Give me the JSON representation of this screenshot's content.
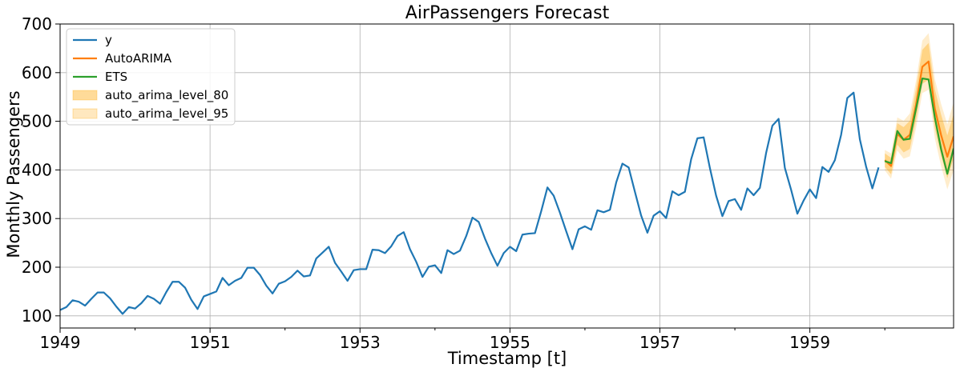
{
  "chart_data": {
    "type": "line",
    "title": "AirPassengers Forecast",
    "xlabel": "Timestamp [t]",
    "ylabel": "Monthly Passengers",
    "xlim": [
      1949.0,
      1960.917
    ],
    "ylim": [
      75,
      700
    ],
    "x_ticks": [
      1949,
      1951,
      1953,
      1955,
      1957,
      1959
    ],
    "x_minor_ticks": [
      1950,
      1952,
      1954,
      1956,
      1958,
      1960
    ],
    "x_tick_labels": [
      "1949",
      "1951",
      "1953",
      "1955",
      "1957",
      "1959"
    ],
    "y_ticks": [
      100,
      200,
      300,
      400,
      500,
      600,
      700
    ],
    "y_tick_labels": [
      "100",
      "200",
      "300",
      "400",
      "500",
      "600",
      "700"
    ],
    "grid": true,
    "legend": {
      "placement": "top-left"
    },
    "series": [
      {
        "name": "y",
        "color": "#1f77b4",
        "x_start": "1949-01",
        "values": [
          112,
          118,
          132,
          129,
          121,
          135,
          148,
          148,
          136,
          119,
          104,
          118,
          115,
          126,
          141,
          135,
          125,
          149,
          170,
          170,
          158,
          133,
          114,
          140,
          145,
          150,
          178,
          163,
          172,
          178,
          199,
          199,
          184,
          162,
          146,
          166,
          171,
          180,
          193,
          181,
          183,
          218,
          230,
          242,
          209,
          191,
          172,
          194,
          196,
          196,
          236,
          235,
          229,
          243,
          264,
          272,
          237,
          211,
          180,
          201,
          204,
          188,
          235,
          227,
          234,
          264,
          302,
          293,
          259,
          229,
          203,
          229,
          242,
          233,
          267,
          269,
          270,
          315,
          364,
          347,
          312,
          274,
          237,
          278,
          284,
          277,
          317,
          313,
          318,
          374,
          413,
          405,
          355,
          306,
          271,
          306,
          315,
          301,
          356,
          348,
          355,
          422,
          465,
          467,
          404,
          347,
          305,
          336,
          340,
          318,
          362,
          348,
          363,
          435,
          491,
          505,
          404,
          359,
          310,
          337,
          360,
          342,
          406,
          396,
          420,
          472,
          548,
          559,
          463,
          407,
          362,
          405
        ]
      },
      {
        "name": "AutoARIMA",
        "color": "#ff7f0e",
        "x_start": "1960-01",
        "values": [
          420,
          408,
          474,
          462,
          472,
          535,
          612,
          623,
          526,
          472,
          427,
          469
        ]
      },
      {
        "name": "ETS",
        "color": "#2ca02c",
        "x_start": "1960-01",
        "values": [
          418,
          414,
          480,
          462,
          464,
          526,
          588,
          586,
          508,
          443,
          392,
          444
        ]
      },
      {
        "name": "auto_arima_level_80",
        "type": "band",
        "color": "#ffa500",
        "opacity": 0.35,
        "x_start": "1960-01",
        "lo": [
          406,
          391,
          452,
          436,
          443,
          503,
          577,
          585,
          486,
          430,
          383,
          423
        ],
        "hi": [
          434,
          425,
          496,
          488,
          501,
          567,
          647,
          661,
          566,
          514,
          471,
          515
        ]
      },
      {
        "name": "auto_arima_level_95",
        "type": "band",
        "color": "#ffa500",
        "opacity": 0.2,
        "x_start": "1960-01",
        "lo": [
          399,
          382,
          440,
          423,
          428,
          486,
          558,
          565,
          465,
          408,
          360,
          399
        ],
        "hi": [
          441,
          434,
          508,
          501,
          516,
          584,
          666,
          681,
          587,
          536,
          494,
          539
        ]
      }
    ]
  }
}
